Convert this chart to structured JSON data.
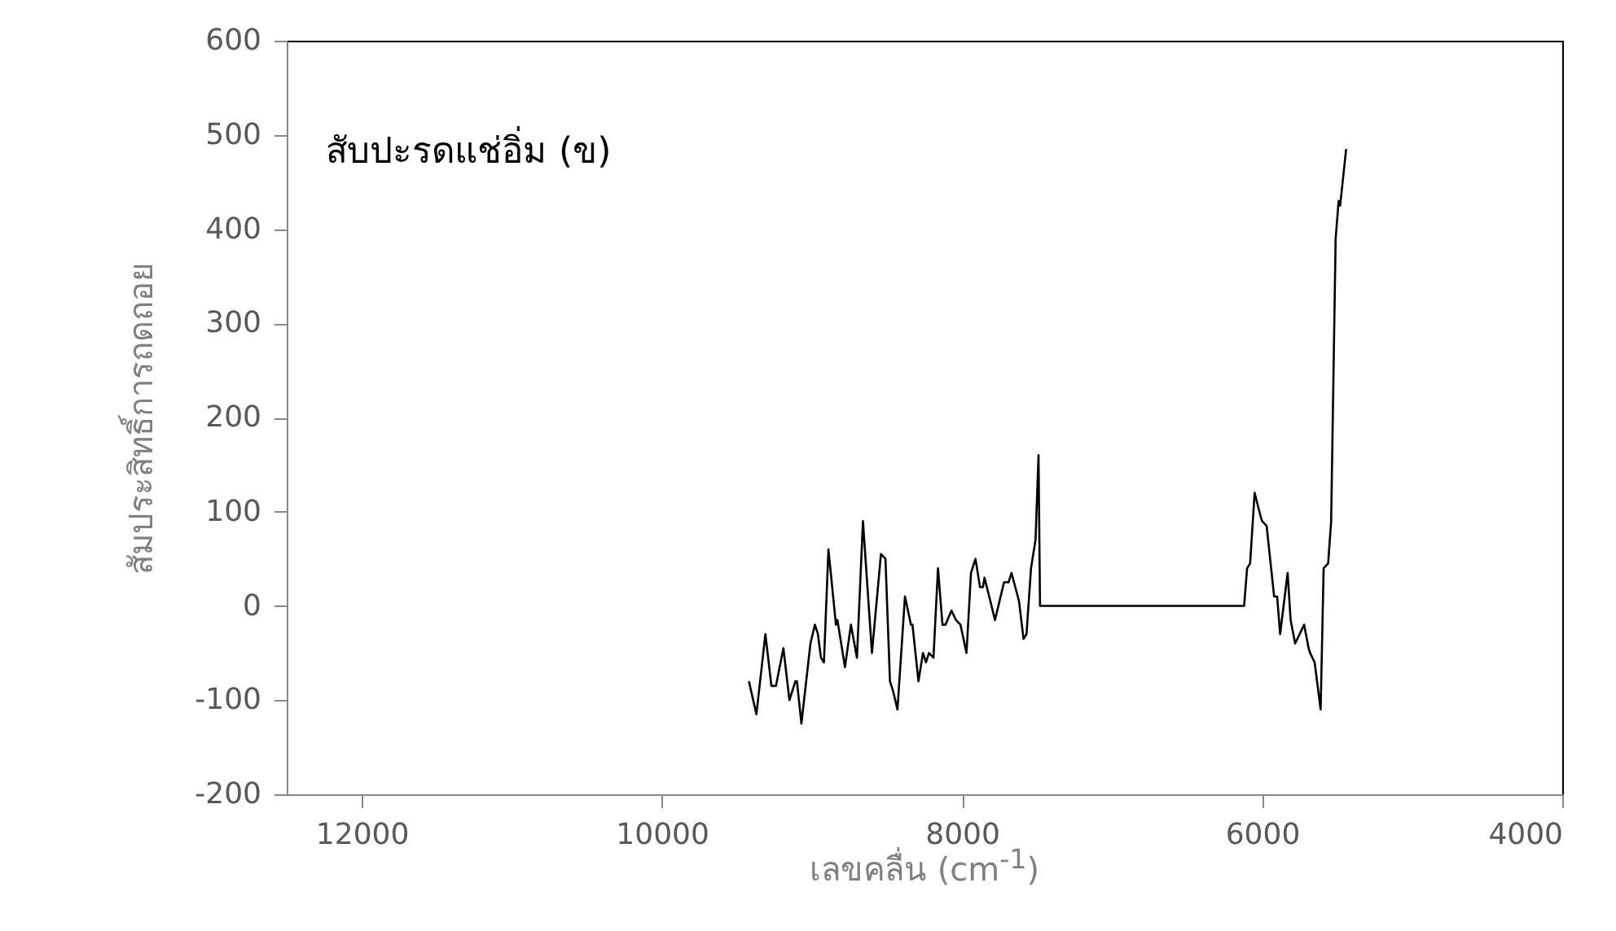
{
  "chart_data": {
    "type": "line",
    "xlabel": "เลขคลื่น (cm$^{-1}$)",
    "ylabel": "สัมประสิทธิ์การถดถอย",
    "annotations": [
      "สับปะรดแช่อิ่ม (ข)"
    ],
    "xlim": [
      12500,
      4000
    ],
    "xticks": [
      12000,
      10000,
      8000,
      6000,
      4000
    ],
    "ylim": [
      -200,
      600
    ],
    "yticks": [
      -200,
      -100,
      0,
      100,
      200,
      300,
      400,
      500,
      600
    ],
    "grid": false,
    "x": [
      9420,
      9370,
      9310,
      9270,
      9240,
      9190,
      9150,
      9110,
      9100,
      9070,
      9010,
      8980,
      8960,
      8940,
      8920,
      8890,
      8840,
      8830,
      8780,
      8740,
      8700,
      8660,
      8600,
      8540,
      8510,
      8480,
      8460,
      8430,
      8380,
      8340,
      8330,
      8290,
      8260,
      8240,
      8220,
      8190,
      8160,
      8130,
      8110,
      8070,
      8040,
      8010,
      7970,
      7940,
      7910,
      7880,
      7860,
      7850,
      7780,
      7720,
      7690,
      7670,
      7620,
      7590,
      7570,
      7540,
      7510,
      7490,
      7480,
      6120,
      6100,
      6080,
      6050,
      6010,
      6000,
      5970,
      5920,
      5900,
      5880,
      5830,
      5810,
      5780,
      5720,
      5690,
      5680,
      5650,
      5610,
      5590,
      5560,
      5540,
      5510,
      5490,
      5480,
      5440
    ],
    "series": [
      {
        "color": "#000000",
        "values": [
          -80,
          -115,
          -30,
          -85,
          -85,
          -45,
          -100,
          -80,
          -80,
          -125,
          -40,
          -20,
          -30,
          -55,
          -60,
          60,
          -20,
          -15,
          -65,
          -20,
          -55,
          90,
          -50,
          55,
          50,
          -80,
          -90,
          -110,
          10,
          -20,
          -20,
          -80,
          -50,
          -60,
          -50,
          -55,
          40,
          -20,
          -20,
          -5,
          -15,
          -20,
          -50,
          35,
          50,
          20,
          20,
          30,
          -15,
          25,
          25,
          35,
          5,
          -35,
          -30,
          40,
          70,
          160,
          0,
          0,
          40,
          45,
          120,
          95,
          90,
          85,
          10,
          10,
          -30,
          35,
          -15,
          -40,
          -20,
          -45,
          -50,
          -60,
          -110,
          40,
          45,
          90,
          390,
          430,
          425,
          485
        ]
      }
    ]
  }
}
